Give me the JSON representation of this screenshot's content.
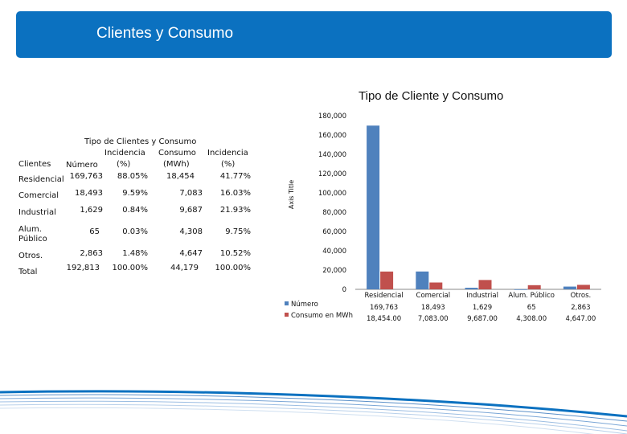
{
  "header": {
    "title": "Clientes y Consumo"
  },
  "table": {
    "caption": "Tipo de Clientes y Consumo",
    "headers": {
      "clientes": "Clientes",
      "numero": "Número",
      "incidencia1_l1": "Incidencia",
      "incidencia1_l2": "(%)",
      "consumo_l1": "Consumo",
      "consumo_l2": "(MWh)",
      "incidencia2_l1": "Incidencia",
      "incidencia2_l2": "(%)"
    },
    "rows": [
      {
        "cliente": "Residencial",
        "numero": "169,763",
        "inc1": "88.05%",
        "consumo": "18,454",
        "inc2": "41.77%"
      },
      {
        "cliente": "Comercial",
        "numero": "18,493",
        "inc1": "9.59%",
        "consumo": "7,083",
        "inc2": "16.03%"
      },
      {
        "cliente": "Industrial",
        "numero": "1,629",
        "inc1": "0.84%",
        "consumo": "9,687",
        "inc2": "21.93%"
      },
      {
        "cliente_l1": "Alum.",
        "cliente_l2": "Público",
        "numero": "65",
        "inc1": "0.03%",
        "consumo": "4,308",
        "inc2": "9.75%"
      },
      {
        "cliente": "Otros.",
        "numero": "2,863",
        "inc1": "1.48%",
        "consumo": "4,647",
        "inc2": "10.52%"
      }
    ],
    "total": {
      "cliente": "Total",
      "numero": "192,813",
      "inc1": "100.00%",
      "consumo": "44,179",
      "inc2": "100.00%"
    }
  },
  "chart_data": {
    "type": "bar",
    "title": "Tipo de Cliente y Consumo",
    "ylabel": "Axis Title",
    "ylim": [
      0,
      180000
    ],
    "yticks": [
      0,
      20000,
      40000,
      60000,
      80000,
      100000,
      120000,
      140000,
      160000,
      180000
    ],
    "ytick_labels": [
      "0",
      "20,000",
      "40,000",
      "60,000",
      "80,000",
      "100,000",
      "120,000",
      "140,000",
      "160,000",
      "180,000"
    ],
    "categories": [
      "Residencial",
      "Comercial",
      "Industrial",
      "Alum. Público",
      "Otros."
    ],
    "series": [
      {
        "name": "Número",
        "color": "#4f81bd",
        "values": [
          169763,
          18493,
          1629,
          65,
          2863
        ],
        "labels": [
          "169,763",
          "18,493",
          "1,629",
          "65",
          "2,863"
        ]
      },
      {
        "name": "Consumo en MWh",
        "color": "#c0504d",
        "values": [
          18454,
          7083,
          9687,
          4308,
          4647
        ],
        "labels": [
          "18,454.00",
          "7,083.00",
          "9,687.00",
          "4,308.00",
          "4,647.00"
        ]
      }
    ],
    "legend": "bottom-left data table",
    "grid": false
  }
}
